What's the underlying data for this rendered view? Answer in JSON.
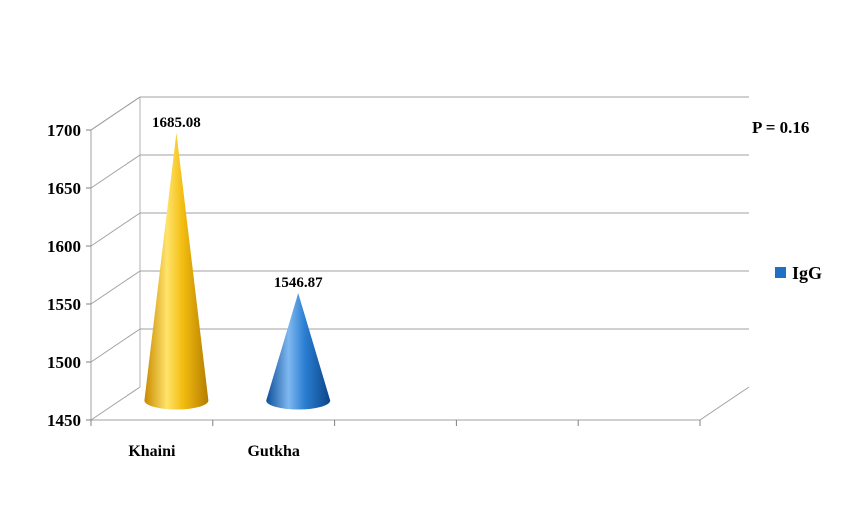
{
  "chart_data": {
    "type": "bar",
    "style": "3d-cone",
    "categories": [
      "Khaini",
      "Gutkha",
      "",
      "",
      ""
    ],
    "series": [
      {
        "name": "IgG",
        "values": [
          1685.08,
          1546.87,
          null,
          null,
          null
        ],
        "color": "#1f6fc4"
      }
    ],
    "bar_colors": [
      "#f0b400",
      "#1f6fc4"
    ],
    "data_labels": [
      "1685.08",
      "1546.87"
    ],
    "ylim": [
      1450,
      1700
    ],
    "yticks": [
      1450,
      1500,
      1550,
      1600,
      1650,
      1700
    ],
    "title": "",
    "xlabel": "",
    "ylabel": "",
    "grid": true,
    "legend_position": "right",
    "annotation": "P = 0.16"
  }
}
